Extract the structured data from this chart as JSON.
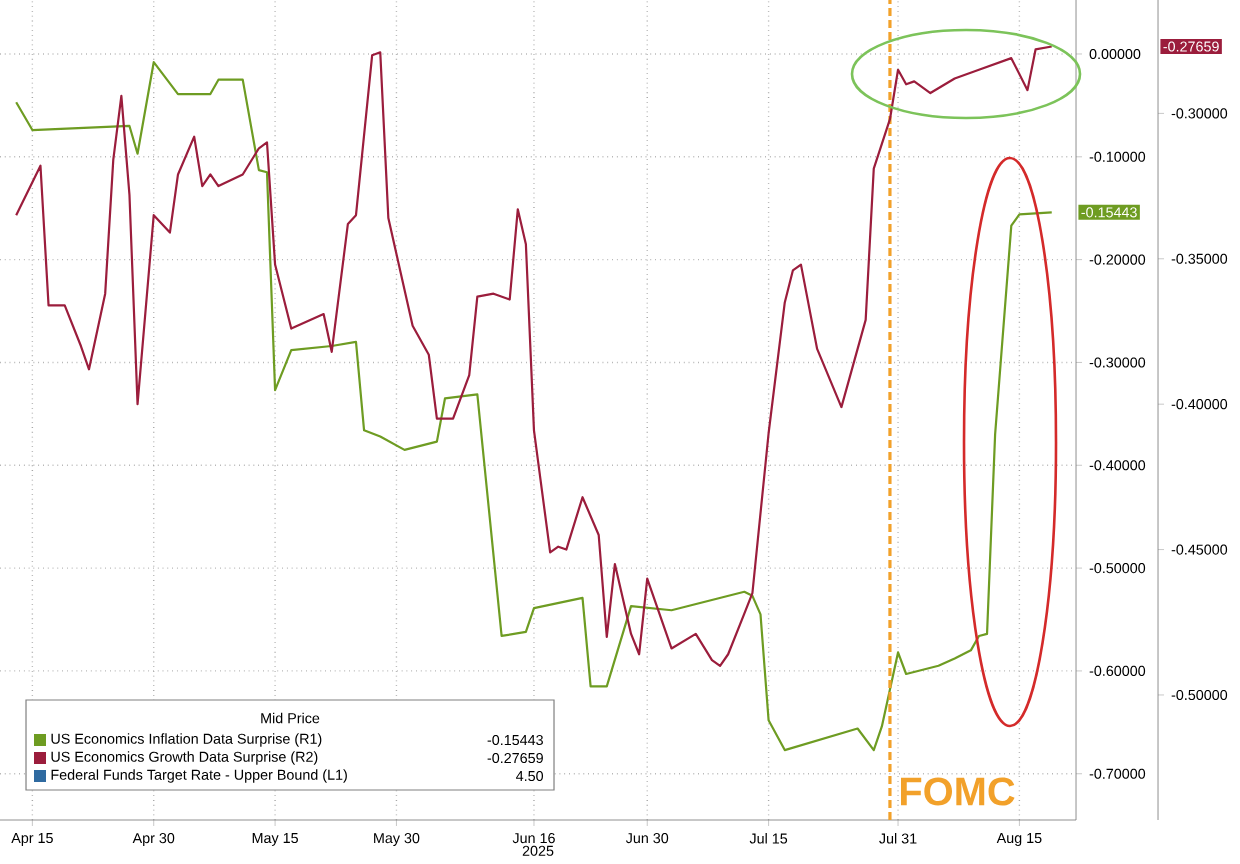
{
  "chart_data": {
    "type": "line",
    "xlabel": "2025",
    "legend_title": "Mid Price",
    "legend": "bottom left",
    "grid": true,
    "xlim": [
      "2025-04-11",
      "2025-08-22"
    ],
    "xticks": [
      {
        "value": "2025-04-15",
        "label": "Apr 15"
      },
      {
        "value": "2025-04-30",
        "label": "Apr 30"
      },
      {
        "value": "2025-05-15",
        "label": "May 15"
      },
      {
        "value": "2025-05-30",
        "label": "May 30"
      },
      {
        "value": "2025-06-16",
        "label": "Jun 16"
      },
      {
        "value": "2025-06-30",
        "label": "Jun 30"
      },
      {
        "value": "2025-07-15",
        "label": "Jul 15"
      },
      {
        "value": "2025-07-31",
        "label": "Jul 31"
      },
      {
        "value": "2025-08-15",
        "label": "Aug 15"
      }
    ],
    "ylim": [
      -0.745,
      0.0525
    ],
    "yticks": [
      {
        "value": 0,
        "label": "0.00000"
      },
      {
        "value": -0.1,
        "label": "-0.10000"
      },
      {
        "value": -0.2,
        "label": "-0.20000"
      },
      {
        "value": -0.3,
        "label": "-0.30000"
      },
      {
        "value": -0.4,
        "label": "-0.40000"
      },
      {
        "value": -0.5,
        "label": "-0.50000"
      },
      {
        "value": -0.6,
        "label": "-0.60000"
      },
      {
        "value": -0.7,
        "label": "-0.70000"
      }
    ],
    "y2lim": [
      -0.543,
      -0.261
    ],
    "y2ticks": [
      {
        "value": -0.3,
        "label": "-0.30000"
      },
      {
        "value": -0.35,
        "label": "-0.35000"
      },
      {
        "value": -0.4,
        "label": "-0.40000"
      },
      {
        "value": -0.45,
        "label": "-0.45000"
      },
      {
        "value": -0.5,
        "label": "-0.50000"
      }
    ],
    "series": [
      {
        "name": "US Economics Inflation Data Surprise (R1)",
        "color": "#6e9c22",
        "x": [
          "2025-04-13",
          "2025-04-15",
          "2025-04-27",
          "2025-04-28",
          "2025-04-30",
          "2025-05-03",
          "2025-05-07",
          "2025-05-08",
          "2025-05-11",
          "2025-05-13",
          "2025-05-14",
          "2025-05-15",
          "2025-05-17",
          "2025-05-22",
          "2025-05-25",
          "2025-05-26",
          "2025-05-28",
          "2025-05-31",
          "2025-06-04",
          "2025-06-05",
          "2025-06-09",
          "2025-06-12",
          "2025-06-15",
          "2025-06-16",
          "2025-06-22",
          "2025-06-23",
          "2025-06-25",
          "2025-06-28",
          "2025-07-03",
          "2025-07-12",
          "2025-07-13",
          "2025-07-14",
          "2025-07-15",
          "2025-07-17",
          "2025-07-26",
          "2025-07-28",
          "2025-07-29",
          "2025-07-31",
          "2025-08-01",
          "2025-08-05",
          "2025-08-07",
          "2025-08-09",
          "2025-08-10",
          "2025-08-11",
          "2025-08-12",
          "2025-08-14",
          "2025-08-15",
          "2025-08-19"
        ],
        "values": [
          -0.047,
          -0.074,
          -0.07,
          -0.097,
          -0.008,
          -0.039,
          -0.039,
          -0.025,
          -0.025,
          -0.113,
          -0.115,
          -0.327,
          -0.288,
          -0.284,
          -0.28,
          -0.366,
          -0.372,
          -0.385,
          -0.377,
          -0.335,
          -0.331,
          -0.566,
          -0.562,
          -0.539,
          -0.529,
          -0.615,
          -0.615,
          -0.537,
          -0.541,
          -0.523,
          -0.527,
          -0.545,
          -0.648,
          -0.677,
          -0.656,
          -0.677,
          -0.654,
          -0.582,
          -0.603,
          -0.595,
          -0.588,
          -0.58,
          -0.566,
          -0.564,
          -0.37,
          -0.167,
          -0.156,
          -0.154
        ]
      },
      {
        "name": "US Economics Growth Data Surprise (R2)",
        "color": "#9b1d3c",
        "axis": "y2",
        "x": [
          "2025-04-13",
          "2025-04-16",
          "2025-04-17",
          "2025-04-19",
          "2025-04-21",
          "2025-04-22",
          "2025-04-24",
          "2025-04-25",
          "2025-04-26",
          "2025-04-27",
          "2025-04-28",
          "2025-04-30",
          "2025-05-02",
          "2025-05-03",
          "2025-05-05",
          "2025-05-06",
          "2025-05-07",
          "2025-05-08",
          "2025-05-11",
          "2025-05-13",
          "2025-05-14",
          "2025-05-15",
          "2025-05-17",
          "2025-05-21",
          "2025-05-22",
          "2025-05-24",
          "2025-05-25",
          "2025-05-27",
          "2025-05-28",
          "2025-05-29",
          "2025-06-01",
          "2025-06-03",
          "2025-06-04",
          "2025-06-06",
          "2025-06-08",
          "2025-06-09",
          "2025-06-11",
          "2025-06-13",
          "2025-06-14",
          "2025-06-15",
          "2025-06-16",
          "2025-06-18",
          "2025-06-19",
          "2025-06-20",
          "2025-06-22",
          "2025-06-24",
          "2025-06-25",
          "2025-06-26",
          "2025-06-28",
          "2025-06-29",
          "2025-06-30",
          "2025-07-03",
          "2025-07-06",
          "2025-07-08",
          "2025-07-09",
          "2025-07-10",
          "2025-07-12",
          "2025-07-13",
          "2025-07-15",
          "2025-07-17",
          "2025-07-18",
          "2025-07-19",
          "2025-07-21",
          "2025-07-24",
          "2025-07-27",
          "2025-07-28",
          "2025-07-30",
          "2025-07-31",
          "2025-08-01",
          "2025-08-02",
          "2025-08-04",
          "2025-08-07",
          "2025-08-10",
          "2025-08-14",
          "2025-08-16",
          "2025-08-17",
          "2025-08-19"
        ],
        "values": [
          -0.335,
          -0.318,
          -0.366,
          -0.366,
          -0.38,
          -0.388,
          -0.362,
          -0.316,
          -0.294,
          -0.328,
          -0.4,
          -0.335,
          -0.341,
          -0.321,
          -0.308,
          -0.325,
          -0.321,
          -0.325,
          -0.321,
          -0.312,
          -0.31,
          -0.352,
          -0.374,
          -0.369,
          -0.382,
          -0.338,
          -0.335,
          -0.28,
          -0.279,
          -0.336,
          -0.373,
          -0.383,
          -0.405,
          -0.405,
          -0.39,
          -0.363,
          -0.362,
          -0.364,
          -0.333,
          -0.345,
          -0.409,
          -0.451,
          -0.449,
          -0.45,
          -0.432,
          -0.445,
          -0.48,
          -0.455,
          -0.479,
          -0.486,
          -0.46,
          -0.484,
          -0.479,
          -0.488,
          -0.49,
          -0.486,
          -0.472,
          -0.465,
          -0.41,
          -0.365,
          -0.354,
          -0.352,
          -0.381,
          -0.401,
          -0.371,
          -0.319,
          -0.302,
          -0.285,
          -0.29,
          -0.289,
          -0.293,
          -0.288,
          -0.285,
          -0.281,
          -0.292,
          -0.278,
          -0.277
        ]
      },
      {
        "name": "Federal Funds Target Rate - Upper Bound (L1)",
        "color": "#2f6aa0"
      }
    ],
    "ref_lines": [
      {
        "axis": "x",
        "value": "2025-07-30",
        "label": "FOMC",
        "color": "#f2a12a",
        "line_style": "dashed"
      }
    ],
    "annotations": [
      "-0.15443",
      "-0.27659",
      "-0.15443",
      "-0.27659",
      "4.50"
    ]
  }
}
